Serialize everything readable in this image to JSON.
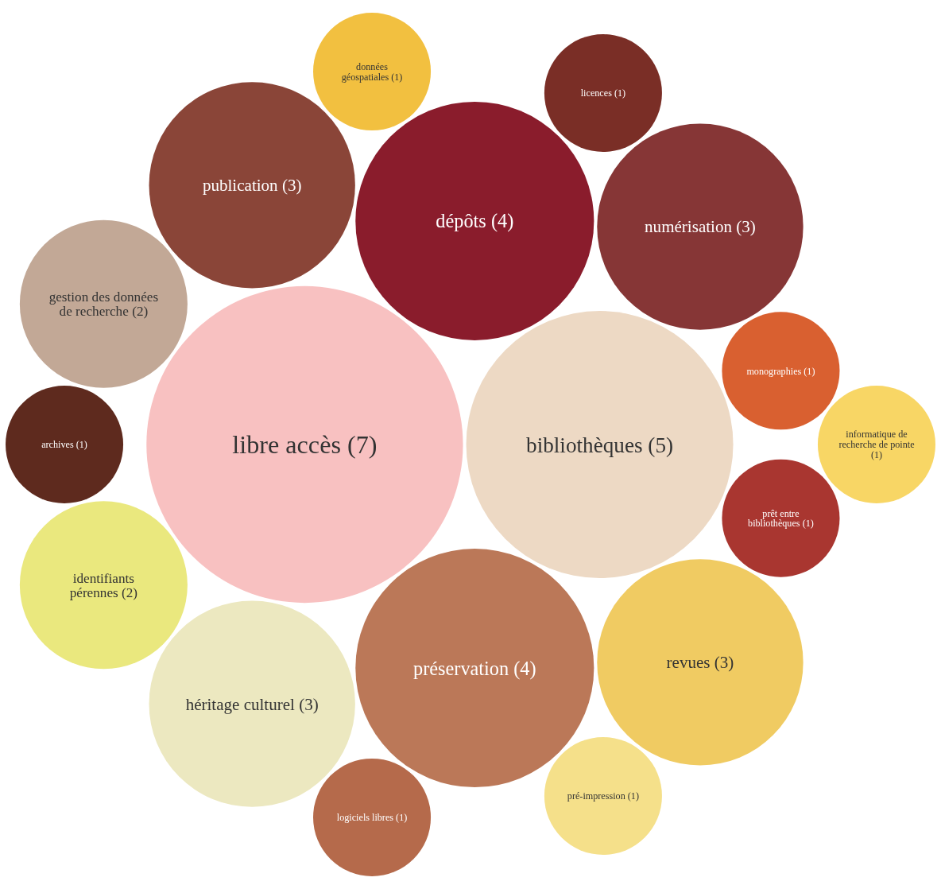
{
  "chart_data": {
    "type": "other",
    "categories": [
      "libre accès",
      "bibliothèques",
      "préservation",
      "dépôts",
      "publication",
      "héritage culturel",
      "numérisation",
      "revues",
      "identifiants pérennes",
      "gestion des données de recherche",
      "monographies",
      "prêt entre bibliothèques",
      "logiciels libres",
      "données géospatiales",
      "licences",
      "pré-impression",
      "archives",
      "informatique de recherche de pointe"
    ],
    "values": [
      7,
      5,
      4,
      4,
      3,
      3,
      3,
      3,
      2,
      2,
      1,
      1,
      1,
      1,
      1,
      1,
      1,
      1
    ],
    "value_labels": [
      "(7)",
      "(5)",
      "(4)",
      "(4)",
      "(3)",
      "(3)",
      "(3)",
      "(3)",
      "(2)",
      "(2)",
      "(1)",
      "(1)",
      "(1)",
      "(1)",
      "(1)",
      "(1)",
      "(1)",
      "(1)"
    ],
    "colors": [
      "#f8c1c1",
      "#edd9c4",
      "#bb7858",
      "#8a1c2c",
      "#8a4538",
      "#ece8c0",
      "#863636",
      "#f0cb62",
      "#eae87e",
      "#c2a896",
      "#d96030",
      "#a93630",
      "#b56a4b",
      "#f2c040",
      "#7a2e26",
      "#f5e08a",
      "#5e2a1e",
      "#f8d665"
    ]
  }
}
